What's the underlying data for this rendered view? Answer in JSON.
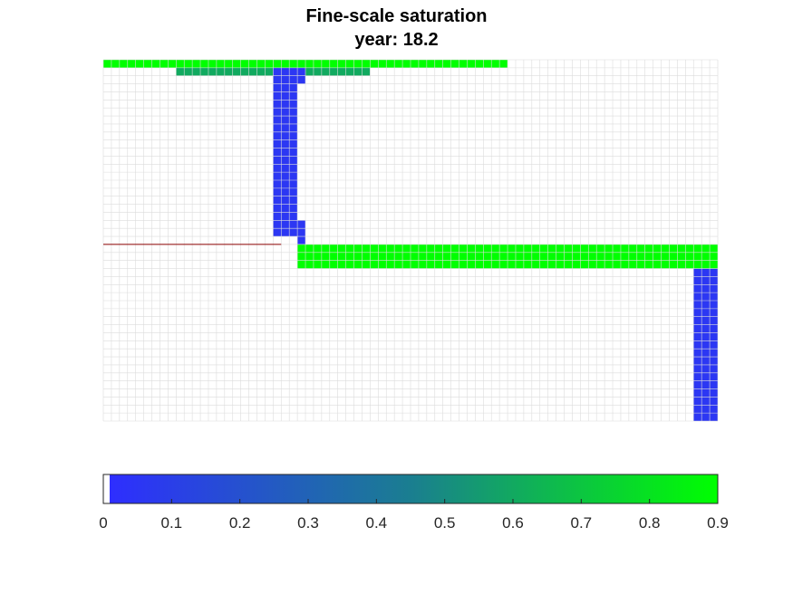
{
  "title": "Fine-scale saturation",
  "subtitle": "year: 18.2",
  "chart_data": {
    "type": "heatmap",
    "title": "Fine-scale saturation",
    "subtitle": "year: 18.2",
    "grid": true,
    "grid_dims": {
      "cols": 76,
      "rows": 45
    },
    "fault_line_color": "#8b0000",
    "colormap": {
      "low_color": "#2e2eff",
      "mid_color": "#1a7f8f",
      "high_color": "#00ff00",
      "empty_color": "#ffffff"
    },
    "colorbar": {
      "orientation": "horizontal",
      "range": [
        0,
        0.9
      ],
      "ticks": [
        0,
        0.1,
        0.2,
        0.3,
        0.4,
        0.5,
        0.6,
        0.7,
        0.8,
        0.9
      ],
      "tick_labels": [
        "0",
        "0.1",
        "0.2",
        "0.3",
        "0.4",
        "0.5",
        "0.6",
        "0.7",
        "0.8",
        "0.9"
      ]
    },
    "cells": [
      {
        "region": "top-layer",
        "col_range": [
          0,
          49
        ],
        "row_range": [
          0,
          0
        ],
        "saturation": 0.9
      },
      {
        "region": "top-layer-bottom",
        "col_range": [
          9,
          32
        ],
        "row_range": [
          1,
          1
        ],
        "saturation": 0.6
      },
      {
        "region": "upper-column",
        "col_range": [
          21,
          23
        ],
        "row_range": [
          1,
          21
        ],
        "saturation": 0.05
      },
      {
        "region": "upper-column-stub",
        "col_range": [
          24,
          24
        ],
        "row_range": [
          1,
          2
        ],
        "saturation": 0.05
      },
      {
        "region": "lower-column-stub",
        "col_range": [
          24,
          24
        ],
        "row_range": [
          20,
          22
        ],
        "saturation": 0.05
      },
      {
        "region": "middle-layer",
        "col_range": [
          24,
          75
        ],
        "row_range": [
          23,
          25
        ],
        "saturation": 0.9
      },
      {
        "region": "lower-right-column",
        "col_range": [
          73,
          75
        ],
        "row_range": [
          26,
          44
        ],
        "saturation": 0.05
      }
    ]
  }
}
